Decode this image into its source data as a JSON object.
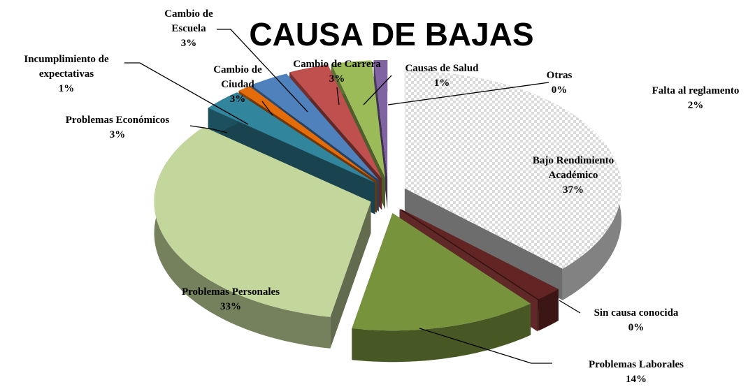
{
  "chart_data": {
    "type": "pie",
    "title": "CAUSA DE BAJAS",
    "categories": [
      "Bajo Rendimiento Académico",
      "Falta al reglamento",
      "Sin causa conocida",
      "Problemas Laborales",
      "Problemas Personales",
      "Problemas Económicos",
      "Incumplimiento de expectativas",
      "Cambio de Ciudad",
      "Cambio de Escuela",
      "Cambio de Carrera",
      "Causas de Salud",
      "Otras"
    ],
    "values": [
      37,
      2,
      0,
      14,
      33,
      3,
      1,
      3,
      3,
      3,
      1,
      0
    ],
    "value_labels": [
      "37%",
      "2%",
      "0%",
      "14%",
      "33%",
      "3%",
      "1%",
      "3%",
      "3%",
      "3%",
      "1%",
      "0%"
    ],
    "colors": [
      "#d9d9d9",
      "#632523",
      "#c0504d",
      "#77933c",
      "#c3d69b",
      "#31859c",
      "#e46c0a",
      "#4f81bd",
      "#c0504d",
      "#9bbb59",
      "#8064a2",
      "#4bacc6"
    ]
  }
}
